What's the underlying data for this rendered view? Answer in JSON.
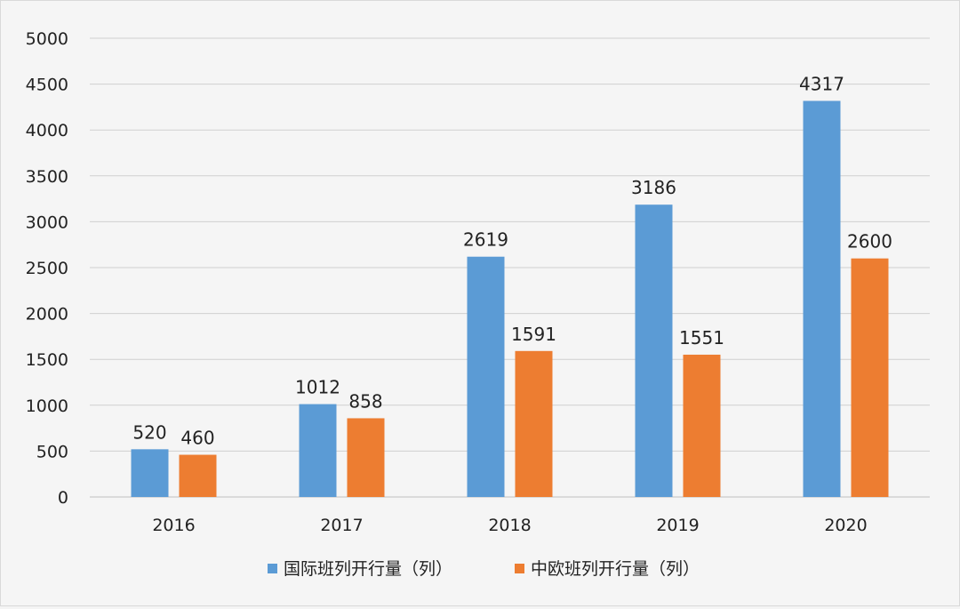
{
  "chart_data": {
    "type": "bar",
    "categories": [
      "2016",
      "2017",
      "2018",
      "2019",
      "2020"
    ],
    "series": [
      {
        "name": "国际班列开行量（列）",
        "values": [
          520,
          1012,
          2619,
          3186,
          4317
        ],
        "color": "#5b9bd5"
      },
      {
        "name": "中欧班列开行量（列）",
        "values": [
          460,
          858,
          1591,
          1551,
          2600
        ],
        "color": "#ed7d31"
      }
    ],
    "ylim": [
      0,
      5000
    ],
    "yticks": [
      "0",
      "500",
      "1000",
      "1500",
      "2000",
      "2500",
      "3000",
      "3500",
      "4000",
      "4500",
      "5000"
    ],
    "grid": true,
    "legend": "bottom",
    "data_labels": true
  }
}
